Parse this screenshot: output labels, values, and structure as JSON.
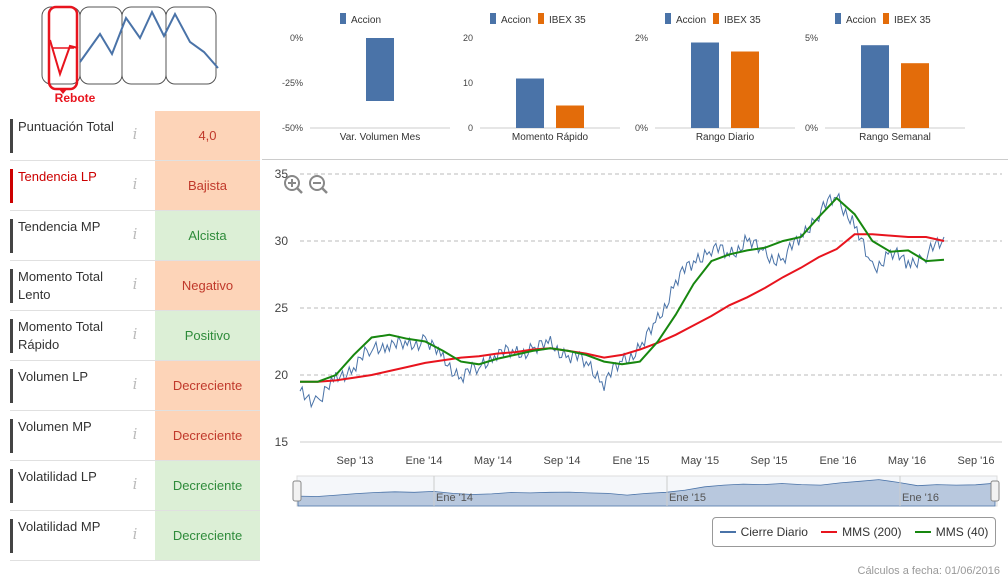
{
  "pattern": {
    "label": "Rebote"
  },
  "indicators": [
    {
      "label": "Puntuación Total",
      "value": "4,0",
      "kind": "score",
      "highlight": false
    },
    {
      "label": "Tendencia LP",
      "value": "Bajista",
      "kind": "neg",
      "highlight": true
    },
    {
      "label": "Tendencia MP",
      "value": "Alcista",
      "kind": "pos",
      "highlight": false
    },
    {
      "label": "Momento Total Lento",
      "value": "Negativo",
      "kind": "neg",
      "highlight": false
    },
    {
      "label": "Momento Total Rápido",
      "value": "Positivo",
      "kind": "pos",
      "highlight": false
    },
    {
      "label": "Volumen LP",
      "value": "Decreciente",
      "kind": "neg",
      "highlight": false
    },
    {
      "label": "Volumen MP",
      "value": "Decreciente",
      "kind": "neg",
      "highlight": false
    },
    {
      "label": "Volatilidad LP",
      "value": "Decreciente",
      "kind": "pos",
      "highlight": false
    },
    {
      "label": "Volatilidad MP",
      "value": "Decreciente",
      "kind": "pos",
      "highlight": false
    }
  ],
  "footer": "Cálculos a fecha: 01/06/2016",
  "colors": {
    "accion": "#4a73a8",
    "ibex": "#e36c0a",
    "cierre": "#4a73a8",
    "mms200": "#e8141e",
    "mms40": "#17870f"
  },
  "chart_data": [
    {
      "type": "bar",
      "title": "Var. Volumen Mes",
      "categories": [
        "Var. Volumen Mes"
      ],
      "series": [
        {
          "name": "Accion",
          "values": [
            -35
          ]
        }
      ],
      "ylim": [
        -50,
        0
      ],
      "yticks": [
        "0%",
        "-25%",
        "-50%"
      ]
    },
    {
      "type": "bar",
      "title": "Momento Rápido",
      "categories": [
        "Momento Rápido"
      ],
      "series": [
        {
          "name": "Accion",
          "values": [
            11
          ]
        },
        {
          "name": "IBEX 35",
          "values": [
            5
          ]
        }
      ],
      "ylim": [
        0,
        20
      ],
      "yticks": [
        "20",
        "10",
        "0"
      ]
    },
    {
      "type": "bar",
      "title": "Rango Diario",
      "categories": [
        "Rango Diario"
      ],
      "series": [
        {
          "name": "Accion",
          "values": [
            1.9
          ]
        },
        {
          "name": "IBEX 35",
          "values": [
            1.7
          ]
        }
      ],
      "ylim": [
        0,
        2
      ],
      "yticks": [
        "2%",
        "0%"
      ]
    },
    {
      "type": "bar",
      "title": "Rango Semanal",
      "categories": [
        "Rango Semanal"
      ],
      "series": [
        {
          "name": "Accion",
          "values": [
            4.6
          ]
        },
        {
          "name": "IBEX 35",
          "values": [
            3.6
          ]
        }
      ],
      "ylim": [
        0,
        5
      ],
      "yticks": [
        "5%",
        "0%"
      ]
    },
    {
      "type": "line",
      "title": "",
      "ylim": [
        15,
        35
      ],
      "yticks": [
        "35",
        "30",
        "25",
        "20",
        "15"
      ],
      "xticks": [
        "Sep '13",
        "Ene '14",
        "May '14",
        "Sep '14",
        "Ene '15",
        "May '15",
        "Sep '15",
        "Ene '16",
        "May '16",
        "Sep '16"
      ],
      "navigator_ticks": [
        "Ene '14",
        "Ene '15",
        "Ene '16"
      ],
      "x": [
        "2013-06",
        "2013-07",
        "2013-08",
        "2013-09",
        "2013-10",
        "2013-11",
        "2013-12",
        "2014-01",
        "2014-02",
        "2014-03",
        "2014-04",
        "2014-05",
        "2014-06",
        "2014-07",
        "2014-08",
        "2014-09",
        "2014-10",
        "2014-11",
        "2014-12",
        "2015-01",
        "2015-02",
        "2015-03",
        "2015-04",
        "2015-05",
        "2015-06",
        "2015-07",
        "2015-08",
        "2015-09",
        "2015-10",
        "2015-11",
        "2015-12",
        "2016-01",
        "2016-02",
        "2016-03",
        "2016-04",
        "2016-05",
        "2016-06"
      ],
      "series": [
        {
          "name": "Cierre Diario",
          "values": [
            18.5,
            18.2,
            19.5,
            20.8,
            21.8,
            22.5,
            22.0,
            22.8,
            21.0,
            20.0,
            20.5,
            21.8,
            21.5,
            22.0,
            22.2,
            21.5,
            21.0,
            19.5,
            21.0,
            22.0,
            24.0,
            27.0,
            28.5,
            29.5,
            29.0,
            30.0,
            29.0,
            28.5,
            30.5,
            32.0,
            33.5,
            31.0,
            28.0,
            29.0,
            28.5,
            28.8,
            30.3
          ]
        },
        {
          "name": "MMS (200)",
          "values": [
            19.5,
            19.5,
            19.6,
            19.8,
            20.0,
            20.3,
            20.6,
            20.9,
            21.1,
            21.3,
            21.4,
            21.6,
            21.7,
            21.9,
            22.0,
            21.8,
            21.6,
            21.3,
            21.5,
            21.9,
            22.4,
            23.0,
            23.7,
            24.4,
            25.2,
            25.8,
            26.5,
            27.3,
            28.0,
            28.8,
            29.4,
            30.5,
            30.5,
            30.4,
            30.3,
            30.3,
            30.0
          ]
        },
        {
          "name": "MMS (40)",
          "values": [
            19.5,
            19.5,
            20.0,
            21.5,
            22.8,
            23.0,
            22.7,
            22.5,
            21.8,
            21.0,
            20.8,
            21.2,
            21.5,
            21.8,
            22.0,
            21.8,
            21.5,
            21.0,
            20.8,
            21.0,
            22.5,
            24.5,
            26.8,
            28.5,
            29.0,
            29.3,
            29.5,
            30.0,
            30.3,
            31.8,
            33.2,
            32.0,
            30.0,
            29.2,
            29.3,
            28.5,
            28.6
          ]
        }
      ]
    }
  ]
}
